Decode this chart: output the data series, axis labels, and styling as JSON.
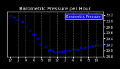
{
  "title": "Barometric Pressure per Hour",
  "legend_label": "Barometric Pressure",
  "background_color": "#000000",
  "plot_bg_color": "#000000",
  "dot_color": "#0000ff",
  "dot_color2": "#4444ff",
  "grid_color": "#555555",
  "text_color": "#ffffff",
  "hours": [
    0,
    1,
    2,
    3,
    4,
    5,
    6,
    7,
    8,
    9,
    10,
    11,
    12,
    13,
    14,
    15,
    16,
    17,
    18,
    19,
    20,
    21,
    22,
    23
  ],
  "pressure": [
    30.18,
    30.12,
    30.05,
    29.95,
    29.82,
    29.68,
    29.54,
    29.38,
    29.22,
    29.1,
    29.02,
    28.96,
    28.94,
    28.95,
    28.98,
    29.0,
    29.03,
    29.05,
    29.08,
    29.1,
    29.13,
    29.15,
    29.17,
    29.18
  ],
  "ylim": [
    28.8,
    30.3
  ],
  "ytick_values": [
    28.8,
    29.0,
    29.2,
    29.4,
    29.6,
    29.8,
    30.0,
    30.2
  ],
  "xtick_positions": [
    0,
    2,
    4,
    6,
    8,
    10,
    12,
    14,
    16,
    18,
    20,
    22
  ],
  "xtick_labels": [
    "12",
    "2",
    "4",
    "6",
    "8",
    "10",
    "12",
    "2",
    "4",
    "6",
    "8",
    "10"
  ],
  "grid_positions": [
    2,
    4,
    6,
    8,
    10,
    12,
    14,
    16,
    18,
    20,
    22
  ],
  "title_fontsize": 5,
  "tick_fontsize": 3.5,
  "legend_fontsize": 3.5
}
